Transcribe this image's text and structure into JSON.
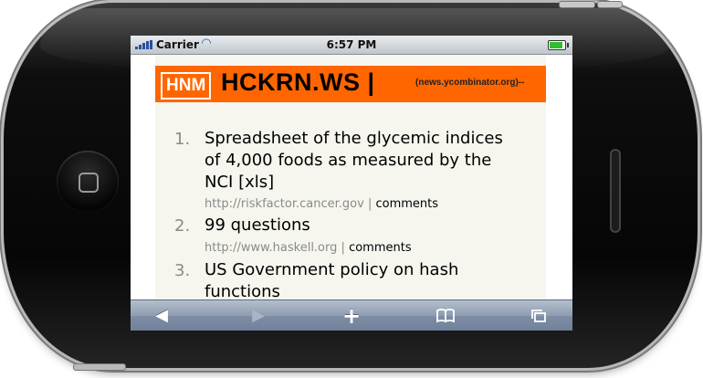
{
  "status_bar": {
    "carrier": "Carrier",
    "time": "6:57 PM",
    "signal_icon": "signal-bars-icon",
    "wifi_icon": "wifi-icon",
    "battery_icon": "battery-icon",
    "battery_level": 1.0
  },
  "header": {
    "logo": "HNM",
    "title": "HCKRN.WS |",
    "subtitle": "(news.ycombinator.org)--"
  },
  "items": [
    {
      "number": "1.",
      "title_lines": [
        "Spreadsheet of the glycemic indices",
        "of 4,000 foods as measured by the",
        "NCI [xls]"
      ],
      "domain": "http://riskfactor.cancer.gov",
      "separator": "|",
      "comments": "comments"
    },
    {
      "number": "2.",
      "title_lines": [
        "99 questions"
      ],
      "domain": "http://www.haskell.org",
      "separator": "|",
      "comments": "comments"
    },
    {
      "number": "3.",
      "title_lines": [
        "US Government policy on hash",
        "functions"
      ],
      "domain": "",
      "separator": "",
      "comments": ""
    }
  ],
  "toolbar": {
    "back_icon": "back-arrow-icon",
    "forward_icon": "forward-arrow-icon",
    "add_icon": "plus-icon",
    "bookmarks_icon": "book-icon",
    "pages_icon": "pages-icon"
  },
  "colors": {
    "accent": "#ff6600",
    "background": "#f6f6ef",
    "toolbar": "#8e9cb0"
  }
}
